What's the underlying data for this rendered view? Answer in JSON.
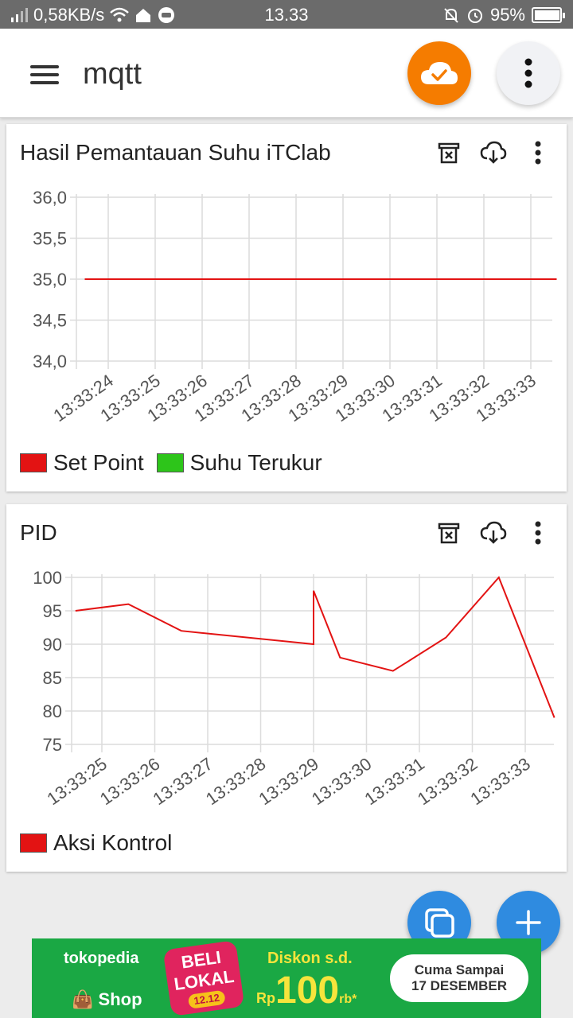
{
  "status_bar": {
    "network_speed": "0,58KB/s",
    "time": "13.33",
    "battery": "95%",
    "battery_level": 0.95
  },
  "app_bar": {
    "title": "mqtt"
  },
  "colors": {
    "accent": "#f57c00",
    "fab_blue": "#2f8be0",
    "series_red": "#d32f2f",
    "legend_red": "#e31313",
    "legend_green": "#2dc51a"
  },
  "chart_data": [
    {
      "type": "line",
      "title": "Hasil Pemantauan Suhu iTClab",
      "x": [
        "13:33:24",
        "13:33:25",
        "13:33:26",
        "13:33:27",
        "13:33:28",
        "13:33:29",
        "13:33:30",
        "13:33:31",
        "13:33:32",
        "13:33:33"
      ],
      "yticks": [
        "36,0",
        "35,5",
        "35,0",
        "34,5",
        "34,0"
      ],
      "ylim": [
        34.0,
        36.0
      ],
      "series": [
        {
          "name": "Set Point",
          "color": "#e31313",
          "points": [
            [
              -0.5,
              35.0
            ],
            [
              9.55,
              35.0
            ]
          ]
        },
        {
          "name": "Suhu Terukur",
          "color": "#2dc51a",
          "points": []
        }
      ],
      "grid": true,
      "legend": "bottom-left"
    },
    {
      "type": "line",
      "title": "PID",
      "x": [
        "13:33:25",
        "13:33:26",
        "13:33:27",
        "13:33:28",
        "13:33:29",
        "13:33:30",
        "13:33:31",
        "13:33:32",
        "13:33:33"
      ],
      "yticks": [
        "100",
        "95",
        "90",
        "85",
        "80",
        "75"
      ],
      "ylim": [
        75,
        100
      ],
      "series": [
        {
          "name": "Aksi Kontrol",
          "color": "#e31313",
          "points": [
            [
              -0.5,
              95
            ],
            [
              0.5,
              96
            ],
            [
              1.5,
              92
            ],
            [
              4.0,
              90
            ],
            [
              4.0,
              98
            ],
            [
              4.5,
              88
            ],
            [
              5.5,
              86
            ],
            [
              6.5,
              91
            ],
            [
              7.5,
              100
            ],
            [
              8.55,
              79
            ]
          ]
        }
      ],
      "grid": true,
      "legend": "bottom-left"
    }
  ],
  "ad": {
    "brand": "tokopedia",
    "shop": "Shop",
    "beli": "BELI",
    "lokal": "LOKAL",
    "date_badge": "12.12",
    "diskon": "Diskon s.d.",
    "rp": "Rp",
    "amount": "100",
    "rb": "rb*",
    "pill_line1": "Cuma Sampai",
    "pill_line2": "17 DESEMBER"
  }
}
